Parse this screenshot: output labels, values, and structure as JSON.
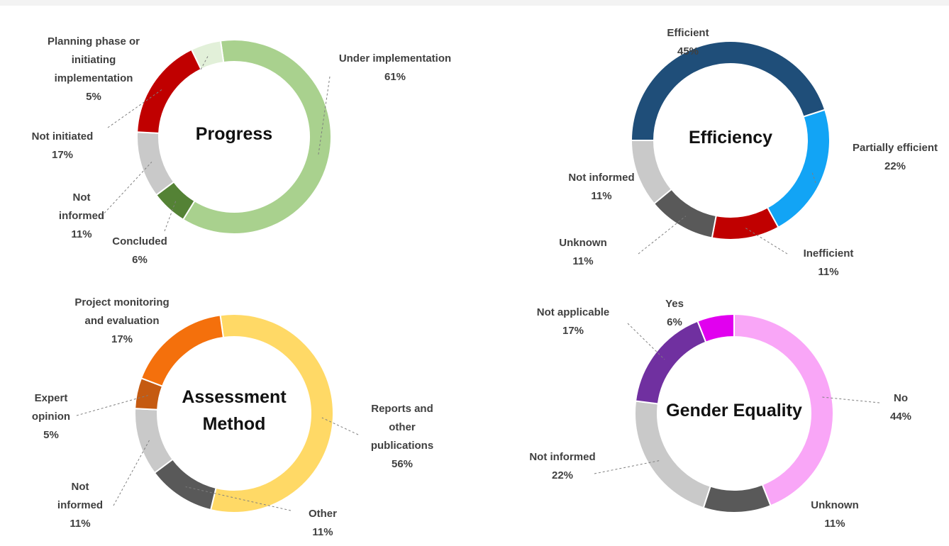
{
  "chart_data": [
    {
      "type": "pie",
      "title": "Progress",
      "categories": [
        "Under implementation",
        "Concluded",
        "Not informed",
        "Not initiated",
        "Planning phase or initiating implementation"
      ],
      "values": [
        61,
        6,
        11,
        17,
        5
      ],
      "value_labels": [
        "61%",
        "6%",
        "11%",
        "17%",
        "5%"
      ],
      "colors": [
        "#a9d18e",
        "#548235",
        "#c9c9c9",
        "#c00000",
        "#e2f0d9"
      ]
    },
    {
      "type": "pie",
      "title": "Efficiency",
      "categories": [
        "Efficient",
        "Partially efficient",
        "Inefficient",
        "Unknown",
        "Not informed"
      ],
      "values": [
        45,
        22,
        11,
        11,
        11
      ],
      "value_labels": [
        "45%",
        "22%",
        "11%",
        "11%",
        "11%"
      ],
      "colors": [
        "#1f4e79",
        "#12a4f5",
        "#c00000",
        "#595959",
        "#c9c9c9"
      ]
    },
    {
      "type": "pie",
      "title": "Assessment Method",
      "categories": [
        "Reports and other publications",
        "Other",
        "Not informed",
        "Expert opinion",
        "Project monitoring and evaluation"
      ],
      "values": [
        56,
        11,
        11,
        5,
        17
      ],
      "value_labels": [
        "56%",
        "11%",
        "11%",
        "5%",
        "17%"
      ],
      "colors": [
        "#ffd966",
        "#595959",
        "#c9c9c9",
        "#c55a11",
        "#f4700c"
      ]
    },
    {
      "type": "pie",
      "title": "Gender Equality",
      "categories": [
        "No",
        "Unknown",
        "Not informed",
        "Not applicable",
        "Yes"
      ],
      "values": [
        44,
        11,
        22,
        17,
        6
      ],
      "value_labels": [
        "44%",
        "11%",
        "22%",
        "17%",
        "6%"
      ],
      "colors": [
        "#f9a6f7",
        "#595959",
        "#c9c9c9",
        "#7030a0",
        "#e100ef"
      ]
    }
  ]
}
